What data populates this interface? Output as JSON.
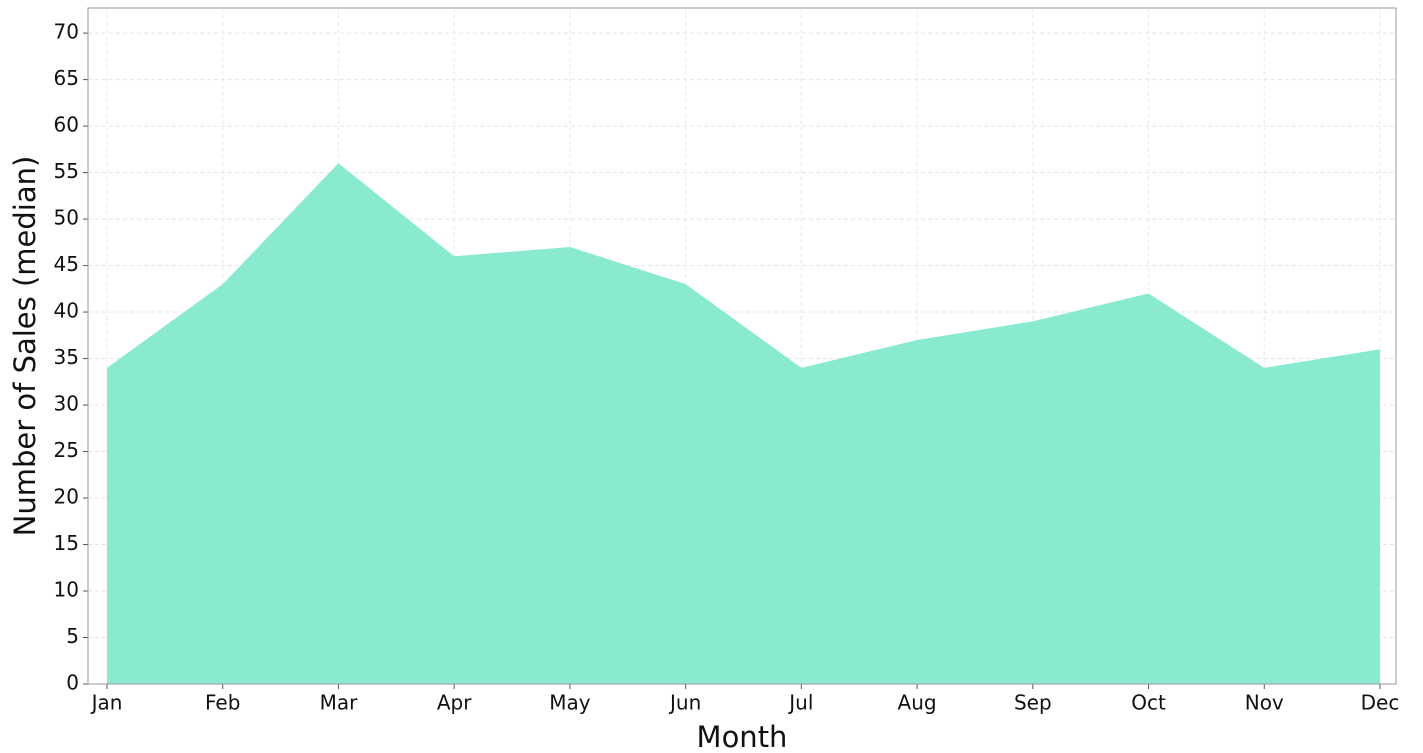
{
  "chart_data": {
    "type": "area",
    "xlabel": "Month",
    "ylabel": "Number of Sales (median)",
    "categories": [
      "Jan",
      "Feb",
      "Mar",
      "Apr",
      "May",
      "Jun",
      "Jul",
      "Aug",
      "Sep",
      "Oct",
      "Nov",
      "Dec"
    ],
    "values": [
      34,
      43,
      56,
      46,
      47,
      43,
      34,
      37,
      39,
      42,
      34,
      36
    ],
    "color": "#8aead0",
    "ylim": [
      0,
      72.7
    ],
    "yticks": [
      0,
      5,
      10,
      15,
      20,
      25,
      30,
      35,
      40,
      45,
      50,
      55,
      60,
      65,
      70
    ],
    "grid": true
  }
}
